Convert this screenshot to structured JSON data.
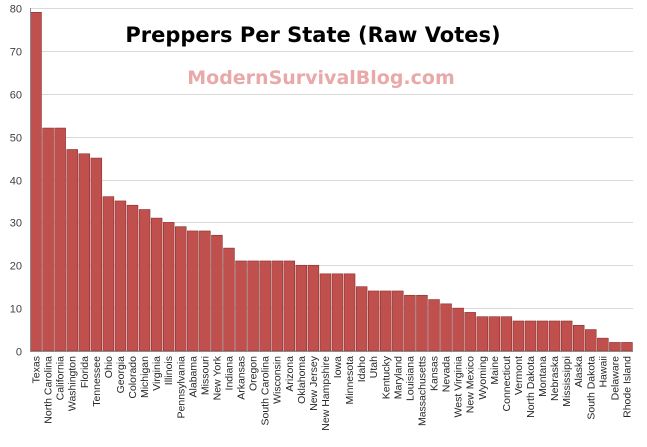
{
  "chart_data": {
    "type": "bar",
    "title": "Preppers Per State  (Raw Votes)",
    "watermark": "ModernSurvivalBlog.com",
    "xlabel": "",
    "ylabel": "",
    "ylim": [
      0,
      80
    ],
    "yticks": [
      0,
      10,
      20,
      30,
      40,
      50,
      60,
      70,
      80
    ],
    "grid": true,
    "legend": "none",
    "bar_color": "#c0504d",
    "bar_edge_color": "#8b2f2d",
    "categories": [
      "Texas",
      "North Carolina",
      "California",
      "Washington",
      "Florida",
      "Tennessee",
      "Ohio",
      "Georgia",
      "Colorado",
      "Michigan",
      "Virginia",
      "Illinois",
      "Pennsylvania",
      "Alabama",
      "Missouri",
      "New York",
      "Indiana",
      "Arkansas",
      "Oregon",
      "South Carolina",
      "Wisconsin",
      "Arizona",
      "Oklahoma",
      "New Jersey",
      "New Hampshire",
      "Iowa",
      "Minnesota",
      "Idaho",
      "Utah",
      "Kentucky",
      "Maryland",
      "Louisiana",
      "Massachusetts",
      "Kansas",
      "Nevada",
      "West Virginia",
      "New Mexico",
      "Wyoming",
      "Maine",
      "Connecticut",
      "Vermont",
      "North Dakota",
      "Montana",
      "Nebraska",
      "Mississippi",
      "Alaska",
      "South Dakota",
      "Hawaii",
      "Delaware",
      "Rhode Island"
    ],
    "values": [
      79,
      52,
      52,
      47,
      46,
      45,
      36,
      35,
      34,
      33,
      31,
      30,
      29,
      28,
      28,
      27,
      24,
      21,
      21,
      21,
      21,
      21,
      20,
      20,
      18,
      18,
      18,
      15,
      14,
      14,
      14,
      13,
      13,
      12,
      11,
      10,
      9,
      8,
      8,
      8,
      7,
      7,
      7,
      7,
      7,
      6,
      5,
      3,
      2,
      2
    ]
  }
}
